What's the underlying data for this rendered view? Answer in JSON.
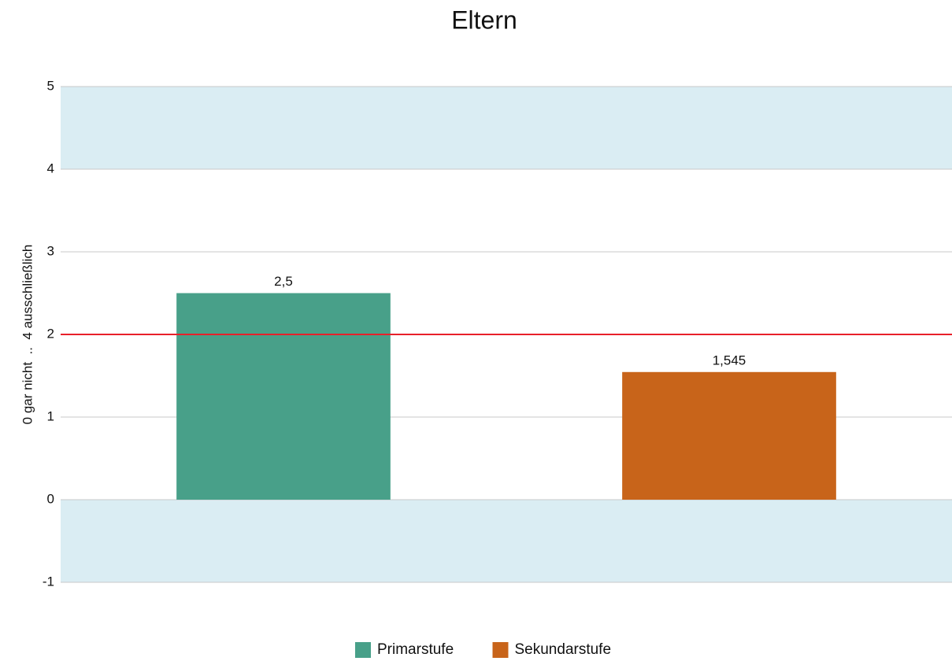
{
  "chart_data": {
    "type": "bar",
    "title": "Eltern",
    "y_label": "0 gar nicht  ..  4 ausschließlich",
    "categories": [
      null
    ],
    "series": [
      {
        "name": "Primarstufe",
        "color": "#48a089",
        "values": [
          2.5
        ],
        "value_labels": [
          "2,5"
        ]
      },
      {
        "name": "Sekundarstufe",
        "color": "#c8641a",
        "values": [
          1.545
        ],
        "value_labels": [
          "1,545"
        ]
      }
    ],
    "ylim": [
      -1,
      5
    ],
    "yticks": [
      -1,
      0,
      1,
      2,
      3,
      4,
      5
    ],
    "grid": true,
    "plot_bands": [
      {
        "from": 4,
        "to": 5,
        "color": "#daedf3"
      },
      {
        "from": -1,
        "to": 0,
        "color": "#daedf3"
      }
    ],
    "reference_lines": [
      {
        "value": 2,
        "color": "#e8202a"
      }
    ],
    "legend": "bottom"
  }
}
